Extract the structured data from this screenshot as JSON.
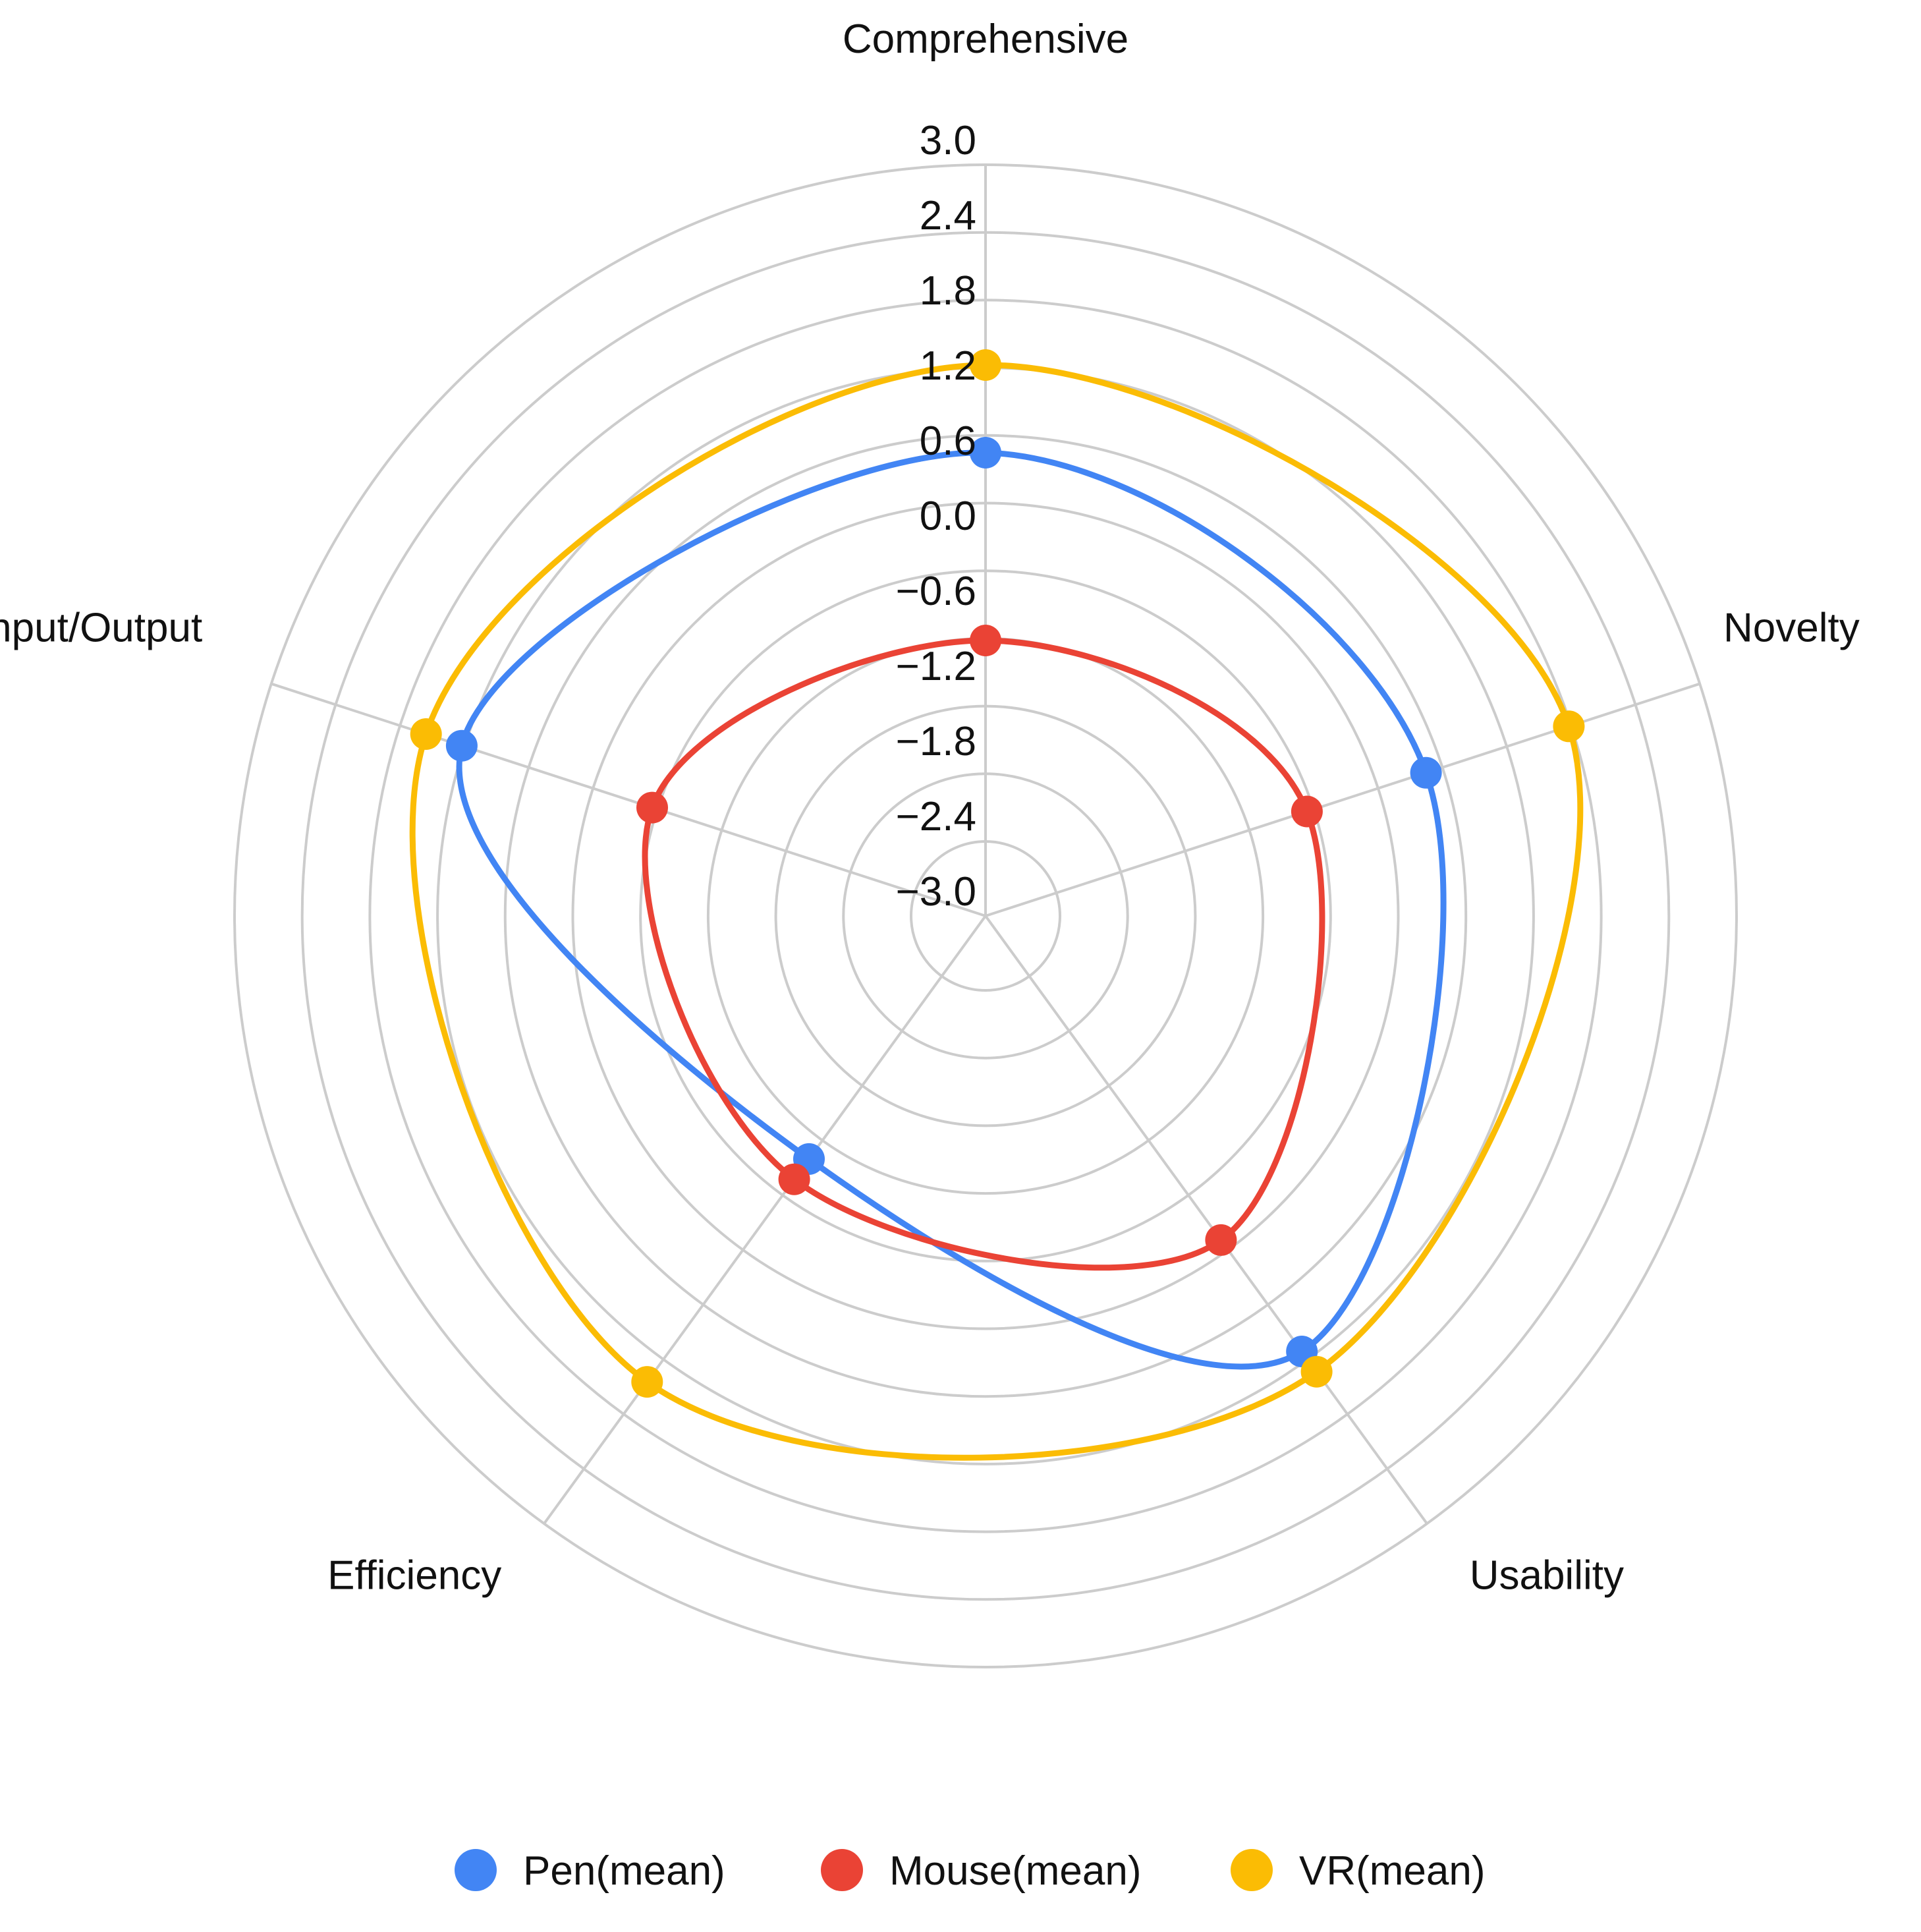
{
  "chart_data": {
    "type": "radar",
    "title": "",
    "axes": [
      "Comprehensive",
      "Novelty",
      "Usability",
      "Efficiency",
      "Input/Output"
    ],
    "rlim": [
      -3.0,
      3.0
    ],
    "ticks": [
      "3.0",
      "2.4",
      "1.8",
      "1.2",
      "0.6",
      "0.0",
      "−0.6",
      "−1.2",
      "−1.8",
      "−2.4",
      "−3.0"
    ],
    "tick_values": [
      3.0,
      2.4,
      1.8,
      1.2,
      0.6,
      0.0,
      -0.6,
      -1.2,
      -1.8,
      -2.4,
      -3.0
    ],
    "grid": true,
    "legend_position": "bottom",
    "series": [
      {
        "name": "Pen(mean)",
        "color": "#4285F4",
        "values": [
          0.7,
          0.7,
          1.3,
          -0.6,
          1.4
        ]
      },
      {
        "name": "Mouse(mean)",
        "color": "#EA4335",
        "values": [
          -0.8,
          -0.3,
          0.2,
          -0.4,
          -0.2
        ]
      },
      {
        "name": "VR(mean)",
        "color": "#FBBC04",
        "values": [
          1.4,
          1.9,
          1.5,
          1.6,
          1.7
        ]
      }
    ]
  }
}
